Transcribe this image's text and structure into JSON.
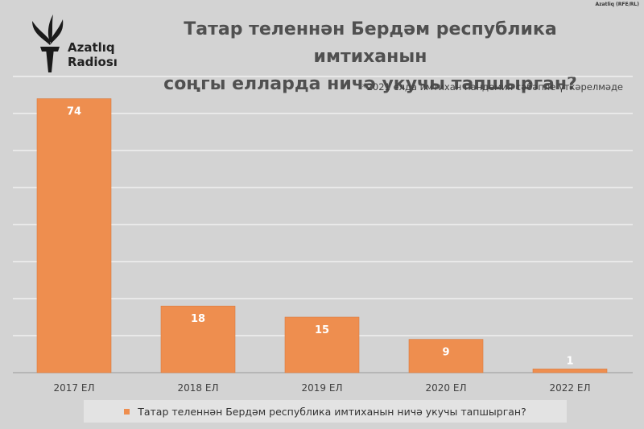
{
  "logo": {
    "line1": "Azatlıq",
    "line2": "Radiosı"
  },
  "credit": "Azatliq (RFE/RL)",
  "title_line1": "Татар теленнән Бердәм республика имтиханын",
  "title_line2": "соңгы елларда ничә укучы тапшырган?",
  "note": "*2021 елда имтихан пандемия сәбәпле үткәрелмәде",
  "colors": {
    "bar": "#ee8e4f",
    "background": "#d3d3d3",
    "grid": "#ffffff"
  },
  "chart_data": {
    "type": "bar",
    "categories": [
      "2017 ЕЛ",
      "2018 ЕЛ",
      "2019 ЕЛ",
      "2020 ЕЛ",
      "2022 ЕЛ"
    ],
    "series": [
      {
        "name": "Татар теленнән Бердәм республика имтиханын ничә укучы тапшырган?",
        "values": [
          74,
          18,
          15,
          9,
          1
        ]
      }
    ],
    "ylim": [
      0,
      80
    ],
    "grid": true,
    "legend": "bottom"
  }
}
